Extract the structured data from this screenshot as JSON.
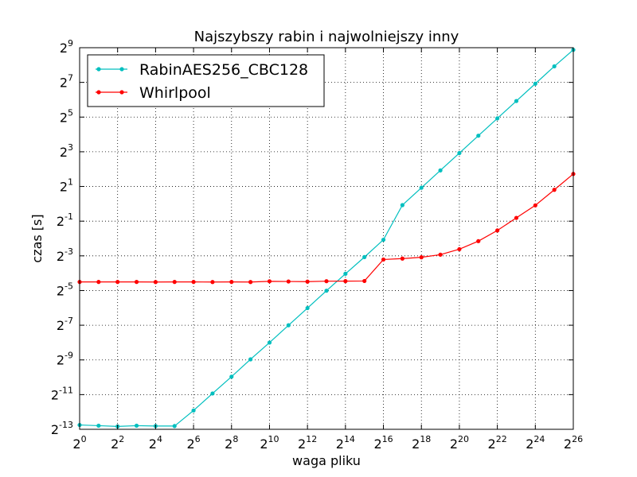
{
  "chart_data": {
    "type": "line",
    "title": "Najszybszy rabin i najwolniejszy inny",
    "xlabel": "waga pliku",
    "ylabel": "czas [s]",
    "x_scale": "log2",
    "y_scale": "log2",
    "xlim": [
      1,
      67108864
    ],
    "ylim": [
      0.0001220703125,
      512
    ],
    "grid": true,
    "legend_position": "top-left",
    "x_ticks": [
      {
        "base": "2",
        "exp": "0"
      },
      {
        "base": "2",
        "exp": "2"
      },
      {
        "base": "2",
        "exp": "4"
      },
      {
        "base": "2",
        "exp": "6"
      },
      {
        "base": "2",
        "exp": "8"
      },
      {
        "base": "2",
        "exp": "10"
      },
      {
        "base": "2",
        "exp": "12"
      },
      {
        "base": "2",
        "exp": "14"
      },
      {
        "base": "2",
        "exp": "16"
      },
      {
        "base": "2",
        "exp": "18"
      },
      {
        "base": "2",
        "exp": "20"
      },
      {
        "base": "2",
        "exp": "22"
      },
      {
        "base": "2",
        "exp": "24"
      },
      {
        "base": "2",
        "exp": "26"
      }
    ],
    "y_ticks": [
      {
        "base": "2",
        "exp": "-13"
      },
      {
        "base": "2",
        "exp": "-11"
      },
      {
        "base": "2",
        "exp": "-9"
      },
      {
        "base": "2",
        "exp": "-7"
      },
      {
        "base": "2",
        "exp": "-5"
      },
      {
        "base": "2",
        "exp": "-3"
      },
      {
        "base": "2",
        "exp": "-1"
      },
      {
        "base": "2",
        "exp": "1"
      },
      {
        "base": "2",
        "exp": "3"
      },
      {
        "base": "2",
        "exp": "5"
      },
      {
        "base": "2",
        "exp": "7"
      },
      {
        "base": "2",
        "exp": "9"
      }
    ],
    "x": [
      1,
      2,
      4,
      8,
      16,
      32,
      64,
      128,
      256,
      512,
      1024,
      2048,
      4096,
      8192,
      16384,
      32768,
      65536,
      131072,
      262144,
      524288,
      1048576,
      2097152,
      4194304,
      8388608,
      16777216,
      33554432,
      67108864
    ],
    "series": [
      {
        "name": "RabinAES256_CBC128",
        "color": "#00bfbf",
        "values": [
          0.000145,
          0.000141,
          0.000137,
          0.000141,
          0.000139,
          0.000139,
          0.000259,
          0.000511,
          0.001,
          0.002,
          0.0039,
          0.0078,
          0.0155,
          0.031,
          0.061,
          0.119,
          0.238,
          0.95,
          1.9,
          3.8,
          7.6,
          15.2,
          30.4,
          60.8,
          121.6,
          243,
          470
        ]
      },
      {
        "name": "Whirlpool",
        "color": "#ff0000",
        "values": [
          0.0441,
          0.0441,
          0.0441,
          0.0441,
          0.0439,
          0.0441,
          0.0441,
          0.0439,
          0.0441,
          0.0439,
          0.0452,
          0.0449,
          0.0446,
          0.0454,
          0.0455,
          0.0458,
          0.108,
          0.112,
          0.118,
          0.131,
          0.163,
          0.225,
          0.345,
          0.57,
          0.94,
          1.75,
          3.3
        ]
      }
    ]
  }
}
